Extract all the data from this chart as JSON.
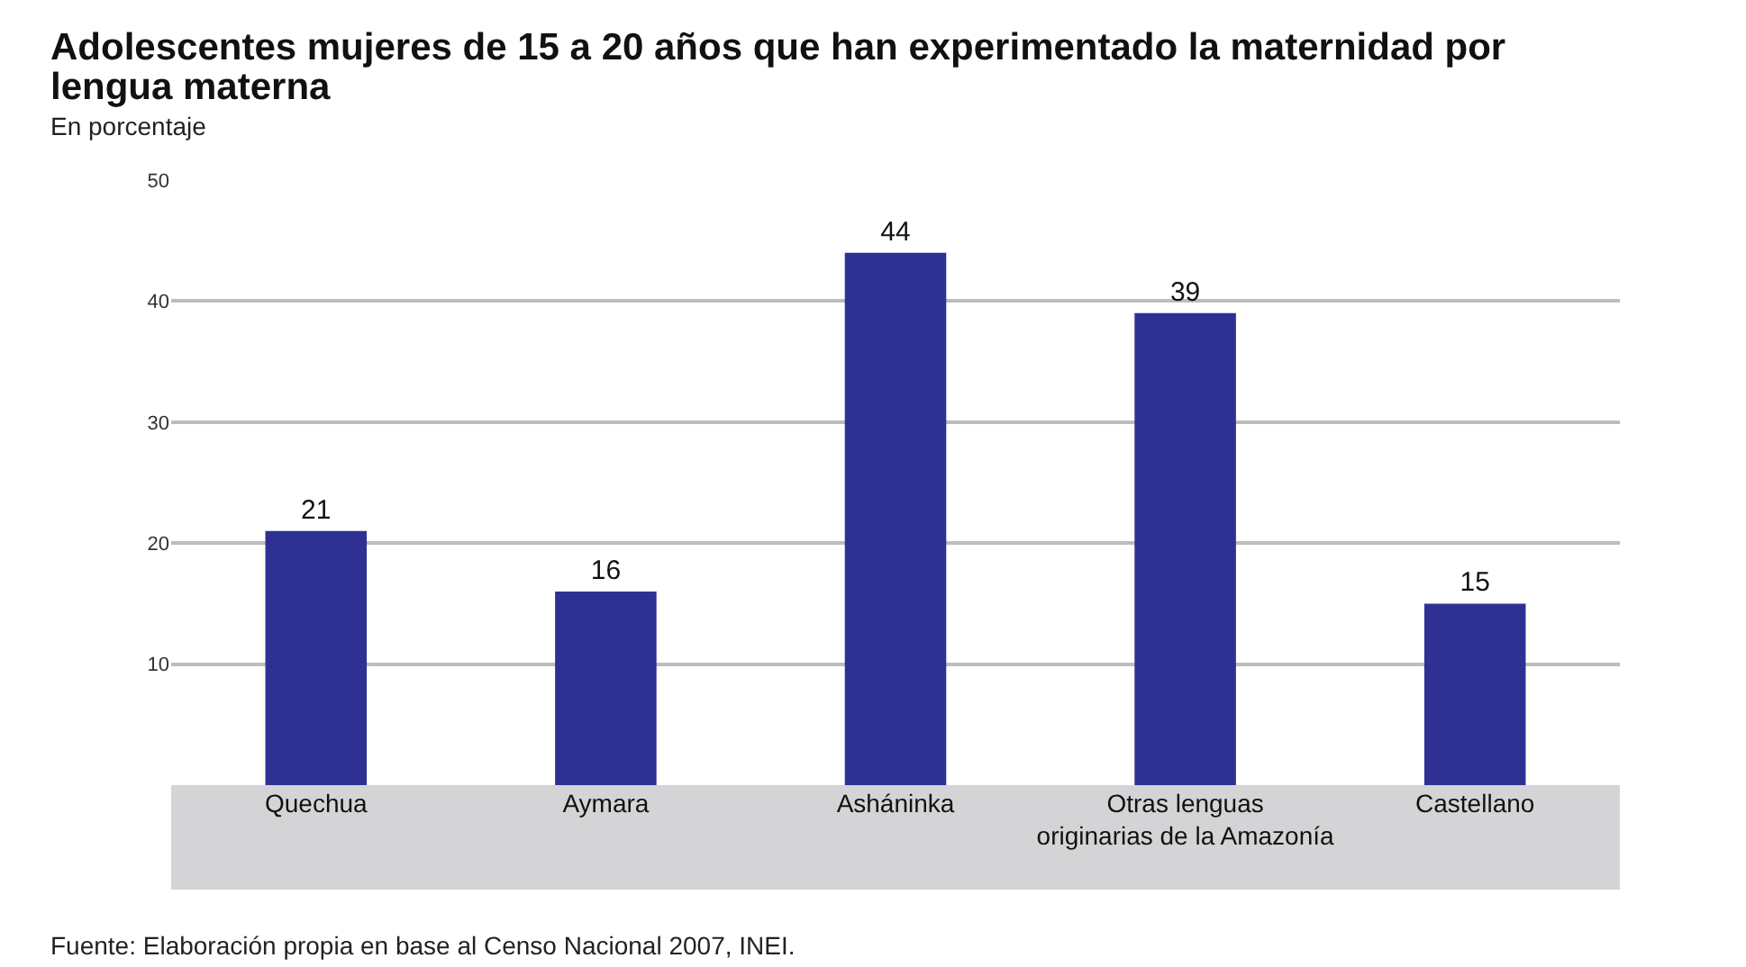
{
  "chart_data": {
    "type": "bar",
    "title": "Adolescentes mujeres de 15 a 20 años que han experimentado la maternidad por lengua materna",
    "subtitle": "En porcentaje",
    "categories": [
      "Quechua",
      "Aymara",
      "Asháninka",
      "Otras lenguas originarias de la Amazonía",
      "Castellano"
    ],
    "values": [
      21,
      16,
      44,
      39,
      15
    ],
    "color": "#2e3192",
    "data_labels": true,
    "ylim": [
      0,
      50
    ],
    "yticks": [
      10,
      20,
      30,
      40,
      50
    ],
    "grid": "y",
    "annotations": [
      "Fuente: Elaboración propia en base al Censo Nacional 2007, INEI."
    ]
  }
}
